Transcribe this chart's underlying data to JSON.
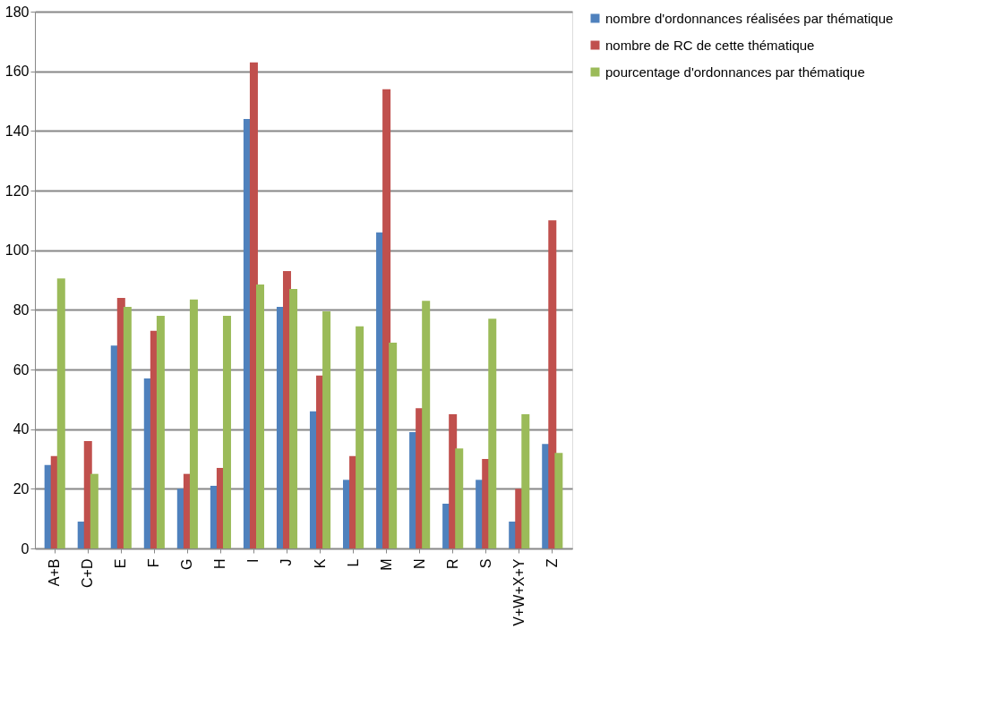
{
  "chart_data": {
    "type": "bar",
    "categories": [
      "A+B",
      "C+D",
      "E",
      "F",
      "G",
      "H",
      "I",
      "J",
      "K",
      "L",
      "M",
      "N",
      "R",
      "S",
      "V+W+X+Y",
      "Z"
    ],
    "series": [
      {
        "name": "nombre d'ordonnances réalisées par thématique",
        "color": "#4f81bd",
        "values": [
          28,
          9,
          68,
          57,
          20,
          21,
          144,
          81,
          46,
          23,
          106,
          39,
          15,
          23,
          9,
          35
        ]
      },
      {
        "name": "nombre de RC de cette thématique",
        "color": "#c0504d",
        "values": [
          31,
          36,
          84,
          73,
          25,
          27,
          163,
          93,
          58,
          31,
          154,
          47,
          45,
          30,
          20,
          110
        ]
      },
      {
        "name": "pourcentage d'ordonnances par thématique",
        "color": "#9bbb59",
        "values": [
          90.5,
          25,
          81,
          78,
          83.5,
          78,
          88.5,
          87,
          79.5,
          74.5,
          69,
          83,
          33.5,
          77,
          45,
          32
        ]
      }
    ],
    "ylim": [
      0,
      180
    ],
    "yticks": [
      0,
      20,
      40,
      60,
      80,
      100,
      120,
      140,
      160,
      180
    ],
    "grid": "y",
    "legend": "right"
  }
}
